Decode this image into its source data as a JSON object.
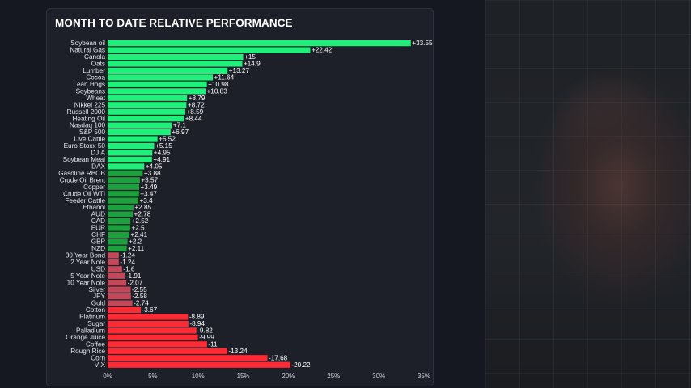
{
  "chart_data": {
    "type": "bar",
    "orientation": "horizontal",
    "title": "MONTH TO DATE RELATIVE PERFORMANCE",
    "xlabel": "",
    "ylabel": "",
    "xlim": [
      0,
      35
    ],
    "grid": false,
    "x_ticks": [
      {
        "value": 0,
        "label": "0%"
      },
      {
        "value": 5,
        "label": "5%"
      },
      {
        "value": 10,
        "label": "10%"
      },
      {
        "value": 15,
        "label": "15%"
      },
      {
        "value": 20,
        "label": "20%"
      },
      {
        "value": 25,
        "label": "25%"
      },
      {
        "value": 30,
        "label": "30%"
      },
      {
        "value": 35,
        "label": "35%"
      }
    ],
    "categories": [
      "Soybean oil",
      "Natural Gas",
      "Canola",
      "Oats",
      "Lumber",
      "Cocoa",
      "Lean Hogs",
      "Soybeans",
      "Wheat",
      "Nikkei 225",
      "Russell 2000",
      "Heating Oil",
      "Nasdaq 100",
      "S&P 500",
      "Live Cattle",
      "Euro Stoxx 50",
      "DJIA",
      "Soybean Meal",
      "DAX",
      "Gasoline RBOB",
      "Crude Oil Brent",
      "Copper",
      "Crude Oil WTI",
      "Feeder Cattle",
      "Ethanol",
      "AUD",
      "CAD",
      "EUR",
      "CHF",
      "GBP",
      "NZD",
      "30 Year Bond",
      "2 Year Note",
      "USD",
      "5 Year Note",
      "10 Year Note",
      "Silver",
      "JPY",
      "Gold",
      "Cotton",
      "Platinum",
      "Sugar",
      "Palladium",
      "Orange Juice",
      "Coffee",
      "Rough Rice",
      "Corn",
      "VIX"
    ],
    "values": [
      33.55,
      22.42,
      15,
      14.9,
      13.27,
      11.64,
      10.98,
      10.83,
      8.79,
      8.72,
      8.59,
      8.44,
      7.1,
      6.97,
      5.52,
      5.15,
      4.95,
      4.91,
      4.05,
      3.88,
      3.57,
      3.49,
      3.47,
      3.4,
      2.85,
      2.78,
      2.52,
      2.5,
      2.41,
      2.2,
      2.11,
      -1.24,
      -1.24,
      -1.6,
      -1.91,
      -2.07,
      -2.55,
      -2.58,
      -2.74,
      -3.67,
      -8.89,
      -8.94,
      -9.82,
      -9.99,
      -11,
      -13.24,
      -17.68,
      -20.22
    ],
    "value_labels": [
      "+33.55",
      "+22.42",
      "+15",
      "+14.9",
      "+13.27",
      "+11.64",
      "+10.98",
      "+10.83",
      "+8.79",
      "+8.72",
      "+8.59",
      "+8.44",
      "+7.1",
      "+6.97",
      "+5.52",
      "+5.15",
      "+4.95",
      "+4.91",
      "+4.05",
      "+3.88",
      "+3.57",
      "+3.49",
      "+3.47",
      "+3.4",
      "+2.85",
      "+2.78",
      "+2.52",
      "+2.5",
      "+2.41",
      "+2.2",
      "+2.11",
      "-1.24",
      "-1.24",
      "-1.6",
      "-1.91",
      "-2.07",
      "-2.55",
      "-2.58",
      "-2.74",
      "-3.67",
      "-8.89",
      "-8.94",
      "-9.82",
      "-9.99",
      "-11",
      "-13.24",
      "-17.68",
      "-20.22"
    ],
    "colors": {
      "positive_bright": "#1ef07a",
      "positive_dark": "#1fa03e",
      "negative_bright": "#ff2a33",
      "negative_muted": "#c2485a",
      "background": "#1d2029"
    }
  }
}
